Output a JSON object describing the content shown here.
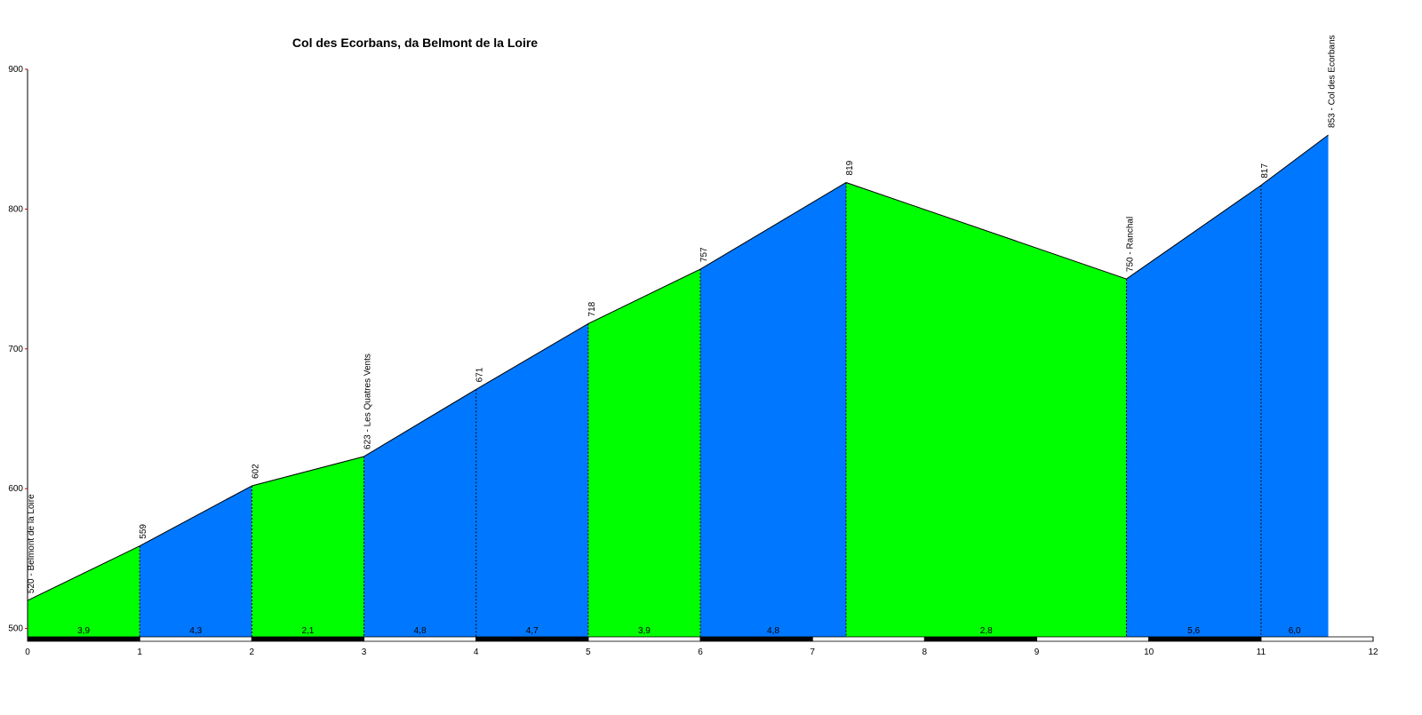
{
  "chart_data": {
    "type": "elevation_profile",
    "title": "Col des Ecorbans, da Belmont de la Loire",
    "x": [
      0,
      1,
      2,
      3,
      4,
      5,
      6,
      7.3,
      9.8,
      11,
      11.6
    ],
    "values": [
      520,
      559,
      602,
      623,
      671,
      718,
      757,
      819,
      750,
      817,
      853
    ],
    "point_labels": [
      "520 - Belmont de la Loire",
      "559",
      "602",
      "623 - Les Quatres Vents",
      "671",
      "718",
      "757",
      "819",
      "750 - Ranchal",
      "817",
      "853 - Col des Ecorbans"
    ],
    "segments": {
      "values": [
        3.9,
        4.3,
        2.1,
        4.8,
        4.7,
        3.9,
        4.8,
        2.8,
        5.6,
        6.0
      ],
      "value_labels": [
        "3,9",
        "4,3",
        "2,1",
        "4,8",
        "4,7",
        "3,9",
        "4,8",
        "2,8",
        "5,6",
        "6,0"
      ],
      "colors": [
        "#00ff00",
        "#0077ff",
        "#00ff00",
        "#0077ff",
        "#0077ff",
        "#00ff00",
        "#0077ff",
        "#00ff00",
        "#0077ff",
        "#0077ff"
      ]
    },
    "xlim": [
      0,
      12
    ],
    "xticks": [
      0,
      1,
      2,
      3,
      4,
      5,
      6,
      7,
      8,
      9,
      10,
      11,
      12
    ],
    "ylim": [
      494,
      900
    ],
    "yticks": [
      500,
      600,
      700,
      800,
      900
    ]
  }
}
